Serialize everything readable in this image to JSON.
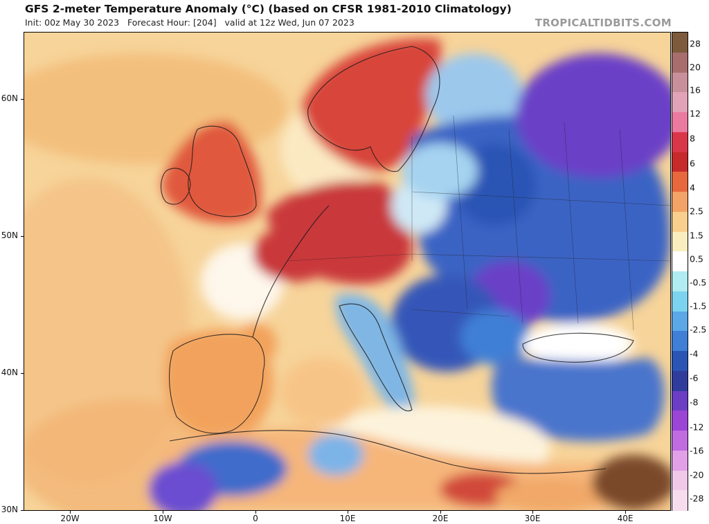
{
  "header": {
    "title": "GFS 2-meter Temperature Anomaly (°C) (based on CFSR 1981-2010 Climatology)",
    "subtitle": "Init: 00z May 30 2023   Forecast Hour: [204]   valid at 12z Wed, Jun 07 2023",
    "watermark": "TROPICALTIDBITS.COM"
  },
  "map": {
    "lat_labels": [
      "60N",
      "50N",
      "40N",
      "30N"
    ],
    "lon_labels": [
      "20W",
      "10W",
      "0",
      "10E",
      "20E",
      "30E",
      "40E"
    ],
    "regions": [
      {
        "name": "atlantic-ocean",
        "color": "#f7d49a"
      },
      {
        "name": "north-sea",
        "color": "#fbe9c2"
      },
      {
        "name": "british-isles",
        "color": "#e0583e"
      },
      {
        "name": "scandinavia",
        "color": "#d8453a"
      },
      {
        "name": "central-europe",
        "color": "#c9383a"
      },
      {
        "name": "eastern-europe",
        "color": "#3a63c4"
      },
      {
        "name": "western-russia",
        "color": "#6a3fc7"
      },
      {
        "name": "iberia",
        "color": "#3456b8"
      },
      {
        "name": "italy",
        "color": "#f2a25c"
      },
      {
        "name": "balkans",
        "color": "#7fb6e4"
      },
      {
        "name": "black-sea",
        "color": "#ffffff"
      },
      {
        "name": "mediterranean",
        "color": "#fdf3dc"
      },
      {
        "name": "north-africa",
        "color": "#f6b67a"
      },
      {
        "name": "turkey",
        "color": "#4a74cc"
      },
      {
        "name": "middle-east",
        "color": "#7a4a2a"
      }
    ]
  },
  "colorbar": {
    "labels": [
      "28",
      "20",
      "16",
      "12",
      "8",
      "6",
      "4",
      "2.5",
      "1.5",
      "0.5",
      "-0.5",
      "-1.5",
      "-2.5",
      "-4",
      "-6",
      "-8",
      "-12",
      "-16",
      "-20",
      "-28"
    ],
    "colors": [
      "#7d5a3c",
      "#a86e6e",
      "#c8909a",
      "#e2a2b8",
      "#ea7aa0",
      "#d9364a",
      "#c72a2a",
      "#e8683e",
      "#f3a365",
      "#f8cf8c",
      "#fbeebe",
      "#ffffff",
      "#b0ecf2",
      "#7cd3ef",
      "#5aa8e6",
      "#3f7fd6",
      "#2a55b5",
      "#2f3c9c",
      "#6b3ec4",
      "#9b45d6",
      "#c06be0",
      "#e2a0e6",
      "#f0c8e8",
      "#f6dcec"
    ]
  }
}
